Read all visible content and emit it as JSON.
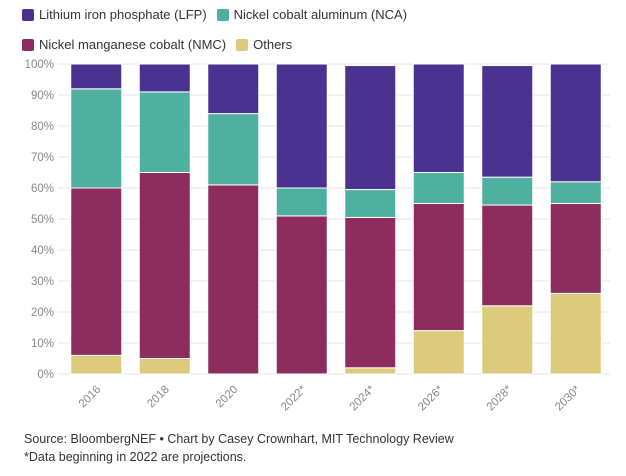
{
  "chart_data": {
    "type": "bar",
    "stacked": true,
    "normalized": true,
    "categories": [
      "2016",
      "2018",
      "2020",
      "2022*",
      "2024*",
      "2026*",
      "2028*",
      "2030*"
    ],
    "series": [
      {
        "name": "Others",
        "color": "#DDCB7D",
        "values": [
          6,
          5,
          0,
          0,
          2,
          14,
          22,
          26
        ]
      },
      {
        "name": "Nickel manganese cobalt (NMC)",
        "color": "#8C2D5E",
        "values": [
          54,
          60,
          61,
          51,
          48.5,
          41,
          32.5,
          29
        ]
      },
      {
        "name": "Nickel cobalt aluminum (NCA)",
        "color": "#4FB0A0",
        "values": [
          32,
          26,
          23,
          9,
          9,
          10,
          9,
          7
        ]
      },
      {
        "name": "Lithium iron phosphate (LFP)",
        "color": "#4A3390",
        "values": [
          8,
          9,
          16,
          40,
          40,
          35,
          36,
          38
        ]
      }
    ],
    "legend_order": [
      "Lithium iron phosphate (LFP)",
      "Nickel cobalt aluminum (NCA)",
      "Nickel manganese cobalt (NMC)",
      "Others"
    ],
    "yticks": [
      "0%",
      "10%",
      "20%",
      "30%",
      "40%",
      "50%",
      "60%",
      "70%",
      "80%",
      "90%",
      "100%"
    ],
    "ylim": [
      0,
      100
    ],
    "grid": true,
    "legend_position": "top-left"
  },
  "source_line": "Source: BloombergNEF • Chart by Casey Crownhart, MIT Technology Review",
  "footnote": "*Data beginning in 2022 are projections."
}
